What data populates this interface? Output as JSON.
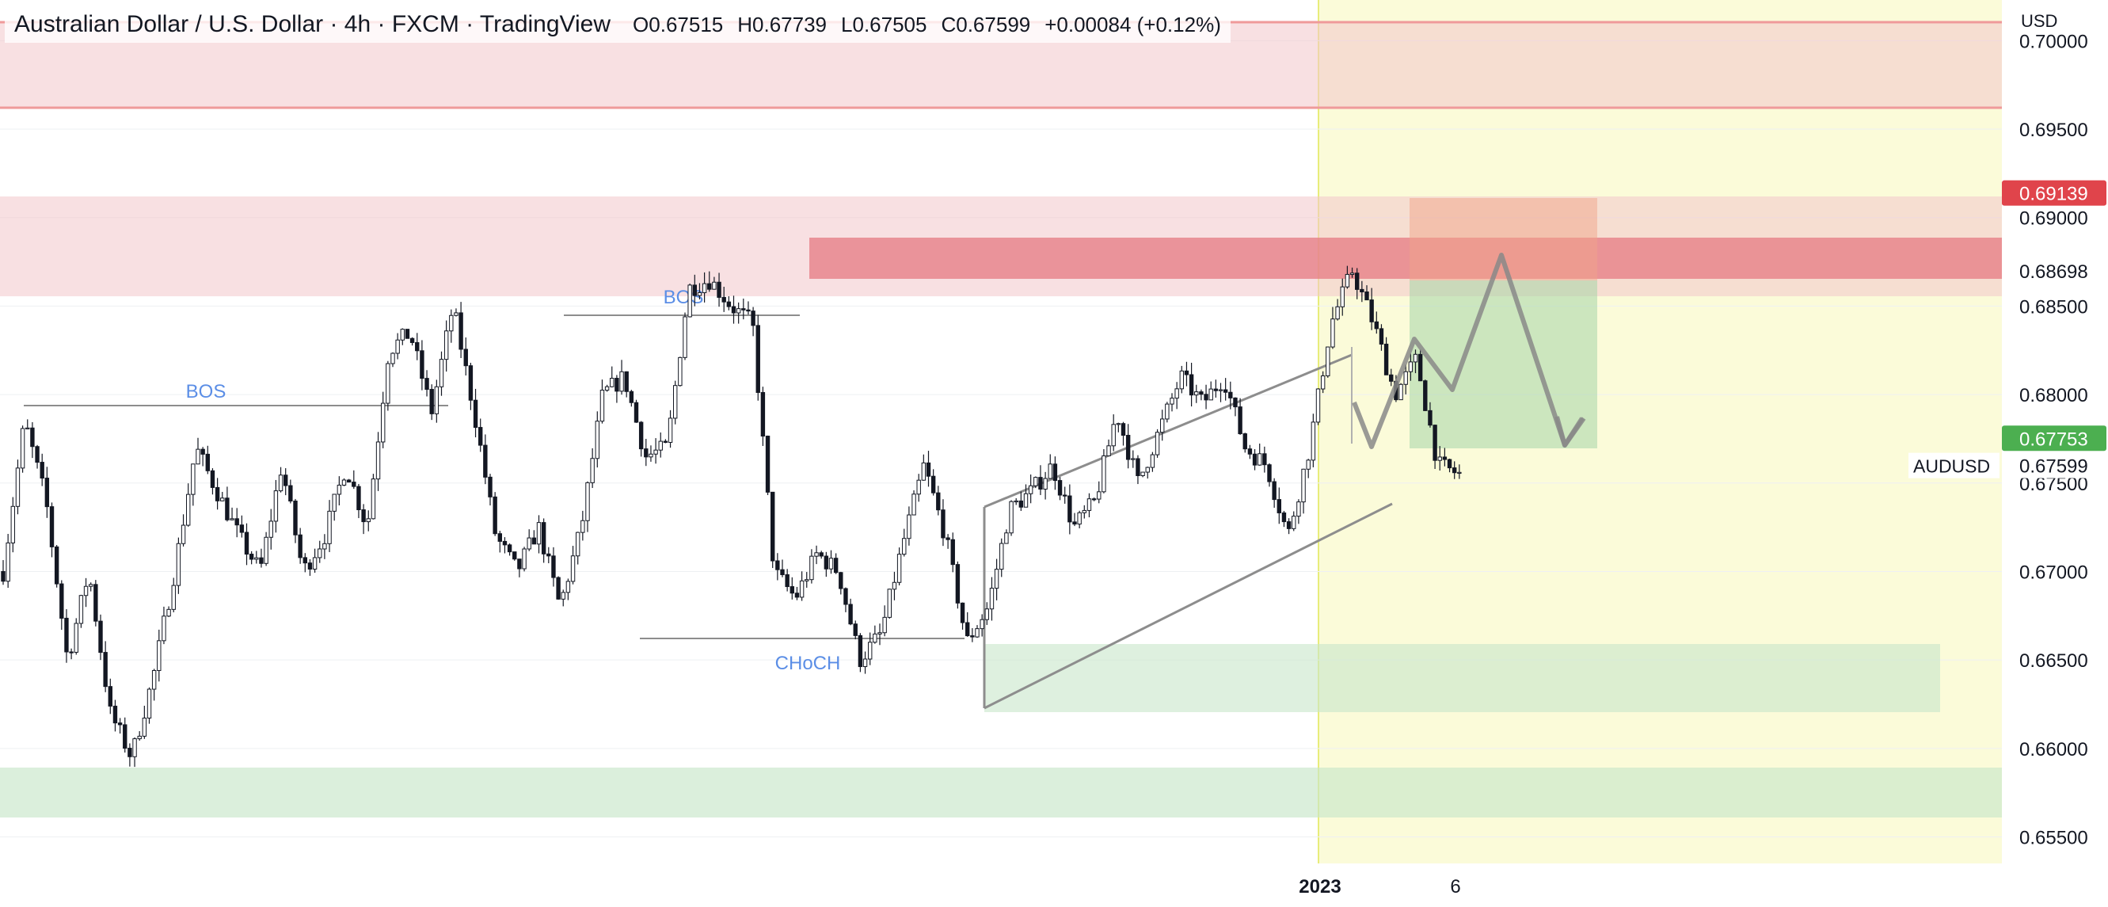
{
  "header": {
    "title": "Australian Dollar / U.S. Dollar · 4h · FXCM · TradingView",
    "open_label": "O",
    "open": "0.67515",
    "high_label": "H",
    "high": "0.67739",
    "low_label": "L",
    "low": "0.67505",
    "close_label": "C",
    "close": "0.67599",
    "change": "+0.00084 (+0.12%)"
  },
  "price_axis": {
    "currency": "USD",
    "ticks": [
      "0.70000",
      "0.69500",
      "0.69000",
      "0.68500",
      "0.68000",
      "0.67500",
      "0.67000",
      "0.66500",
      "0.66000",
      "0.65500"
    ],
    "badges": [
      {
        "value": "0.69139",
        "color": "#e0444b"
      },
      {
        "value": "0.68698",
        "color": "none"
      },
      {
        "value": "0.67753",
        "color": "#4caf50"
      },
      {
        "value": "0.67599",
        "color": "none"
      }
    ],
    "symbol": "AUDUSD"
  },
  "time_axis": {
    "year_label": "2023",
    "day_label": "6"
  },
  "annotations": {
    "bos_1": "BOS",
    "bos_2": "BOS",
    "choch": "CHoCH"
  },
  "colors": {
    "supply_zone": "#f3c6cb",
    "supply_strong": "#e57982",
    "demand_zone": "#c8e6c9",
    "future_area": "#fbfbd9",
    "candle": "#131722",
    "label_blue": "#5b8ee6",
    "projection": "#888888"
  },
  "chart_data": {
    "type": "candlestick",
    "symbol": "AUDUSD",
    "timeframe": "4h",
    "ylim": [
      0.6535,
      0.7023
    ],
    "axis_label": "USD",
    "last": {
      "open": 0.67515,
      "high": 0.67739,
      "low": 0.67505,
      "close": 0.67599
    },
    "path": [
      0.67,
      0.6785,
      0.674,
      0.665,
      0.67,
      0.662,
      0.6595,
      0.664,
      0.67,
      0.677,
      0.6745,
      0.672,
      0.67,
      0.676,
      0.67,
      0.672,
      0.676,
      0.6725,
      0.6825,
      0.6835,
      0.679,
      0.685,
      0.679,
      0.672,
      0.67,
      0.6725,
      0.668,
      0.6725,
      0.68,
      0.681,
      0.6765,
      0.677,
      0.686,
      0.6865,
      0.685,
      0.684,
      0.67,
      0.6685,
      0.671,
      0.67,
      0.665,
      0.6665,
      0.6715,
      0.676,
      0.672,
      0.666,
      0.668,
      0.6735,
      0.6745,
      0.676,
      0.6725,
      0.674,
      0.679,
      0.675,
      0.678,
      0.681,
      0.6795,
      0.681,
      0.677,
      0.676,
      0.672,
      0.677,
      0.684,
      0.687,
      0.684,
      0.68,
      0.682,
      0.676,
      0.6755
    ],
    "zones": [
      {
        "kind": "supply",
        "y1": 0.6962,
        "y2": 0.7011,
        "x_end": "right-edge"
      },
      {
        "kind": "supply",
        "y1": 0.6858,
        "y2": 0.6914,
        "x_end": "right-edge"
      },
      {
        "kind": "supply-strong",
        "y1": 0.6863,
        "y2": 0.6888
      },
      {
        "kind": "demand",
        "y1": 0.6628,
        "y2": 0.6666
      },
      {
        "kind": "demand",
        "y1": 0.6572,
        "y2": 0.66,
        "x_end": "right-edge"
      }
    ],
    "position": {
      "entry": 0.6863,
      "stop": 0.6913,
      "target": 0.6775
    },
    "projection": [
      0.68,
      0.6845,
      0.6805,
      0.6878,
      0.6775,
      0.679
    ],
    "structure": [
      {
        "label": "BOS",
        "level": 0.68
      },
      {
        "label": "BOS",
        "level": 0.6848
      },
      {
        "label": "CHoCH",
        "level": 0.667
      }
    ]
  }
}
